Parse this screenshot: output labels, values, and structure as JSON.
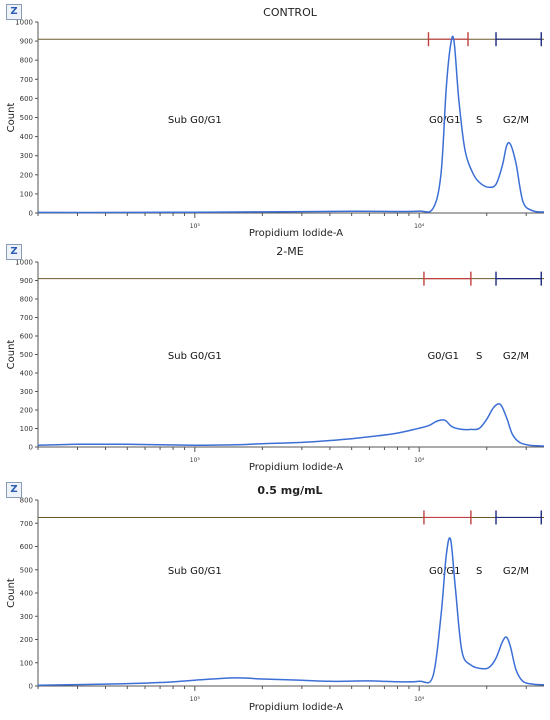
{
  "chart_data": [
    {
      "type": "line",
      "title": "CONTROL",
      "xlabel": "Propidium Iodide-A",
      "ylabel": "Count",
      "ylim": [
        0,
        1000
      ],
      "yticks": [
        0,
        100,
        200,
        300,
        400,
        500,
        600,
        700,
        800,
        900,
        1000
      ],
      "x_scale": "log",
      "xlim": [
        200,
        36000
      ],
      "xtick_labels": [
        {
          "value": 1000,
          "label": "10³"
        },
        {
          "value": 10000,
          "label": "10⁴"
        }
      ],
      "gate_line_y": 910,
      "gate_markers": [
        {
          "x": 11000,
          "color": "#c04040"
        },
        {
          "x": 16500,
          "color": "#c04040"
        },
        {
          "x": 22000,
          "color": "#1c2a80"
        },
        {
          "x": 35000,
          "color": "#1c2a80"
        }
      ],
      "region_labels": [
        {
          "text": "Sub G0/G1",
          "x": 1000
        },
        {
          "text": "G0/G1",
          "x": 13000
        },
        {
          "text": "S",
          "x": 18500
        },
        {
          "text": "G2/M",
          "x": 27000
        }
      ],
      "series": [
        {
          "x": [
            200,
            500,
            1000,
            2000,
            5000,
            8000,
            10000,
            11500,
            12500,
            13200,
            13800,
            14300,
            15000,
            16000,
            17500,
            19000,
            20500,
            22000,
            23500,
            24500,
            25500,
            27000,
            29000,
            32000,
            36000
          ],
          "y": [
            3,
            3,
            4,
            6,
            9,
            8,
            10,
            22,
            200,
            650,
            880,
            900,
            600,
            330,
            200,
            150,
            135,
            150,
            250,
            350,
            360,
            260,
            60,
            12,
            5
          ]
        }
      ]
    },
    {
      "type": "line",
      "title": "2-ME",
      "xlabel": "Propidium Iodide-A",
      "ylabel": "Count",
      "ylim": [
        0,
        1000
      ],
      "yticks": [
        0,
        100,
        200,
        300,
        400,
        500,
        600,
        700,
        800,
        900,
        1000
      ],
      "x_scale": "log",
      "xlim": [
        200,
        36000
      ],
      "xtick_labels": [
        {
          "value": 1000,
          "label": "10³"
        },
        {
          "value": 10000,
          "label": "10⁴"
        }
      ],
      "gate_line_y": 910,
      "gate_markers": [
        {
          "x": 10500,
          "color": "#c04040"
        },
        {
          "x": 17000,
          "color": "#c04040"
        },
        {
          "x": 22000,
          "color": "#1c2a80"
        },
        {
          "x": 35000,
          "color": "#1c2a80"
        }
      ],
      "region_labels": [
        {
          "text": "Sub G0/G1",
          "x": 1000
        },
        {
          "text": "G0/G1",
          "x": 12800
        },
        {
          "text": "S",
          "x": 18500
        },
        {
          "text": "G2/M",
          "x": 27000
        }
      ],
      "series": [
        {
          "x": [
            200,
            300,
            500,
            1000,
            1500,
            2000,
            3000,
            4000,
            5000,
            6500,
            8000,
            9500,
            11000,
            12000,
            13000,
            14000,
            15500,
            17000,
            18500,
            20000,
            21500,
            23000,
            24500,
            26000,
            28000,
            31000,
            36000
          ],
          "y": [
            10,
            15,
            15,
            10,
            12,
            18,
            25,
            35,
            45,
            60,
            75,
            95,
            115,
            140,
            145,
            110,
            95,
            95,
            100,
            150,
            215,
            230,
            160,
            70,
            25,
            10,
            5
          ]
        }
      ]
    },
    {
      "type": "line",
      "title": "0.5 mg/mL",
      "xlabel": "Propidium Iodide-A",
      "ylabel": "Count",
      "ylim": [
        0,
        800
      ],
      "yticks": [
        0,
        100,
        200,
        300,
        400,
        500,
        600,
        700,
        800
      ],
      "x_scale": "log",
      "xlim": [
        200,
        36000
      ],
      "xtick_labels": [
        {
          "value": 1000,
          "label": "10³"
        },
        {
          "value": 10000,
          "label": "10⁴"
        }
      ],
      "gate_line_y": 725,
      "gate_markers": [
        {
          "x": 10500,
          "color": "#c04040"
        },
        {
          "x": 17000,
          "color": "#c04040"
        },
        {
          "x": 22000,
          "color": "#1c2a80"
        },
        {
          "x": 35000,
          "color": "#1c2a80"
        }
      ],
      "region_labels": [
        {
          "text": "Sub G0/G1",
          "x": 1000
        },
        {
          "text": "G0/G1",
          "x": 13000
        },
        {
          "text": "S",
          "x": 18500
        },
        {
          "text": "G2/M",
          "x": 27000
        }
      ],
      "series": [
        {
          "x": [
            200,
            400,
            700,
            1000,
            1500,
            2000,
            3000,
            4000,
            6000,
            8000,
            10000,
            11500,
            12500,
            13200,
            13800,
            14500,
            15500,
            17000,
            19000,
            20500,
            22000,
            23500,
            24500,
            25500,
            27000,
            29000,
            32000,
            36000
          ],
          "y": [
            3,
            8,
            15,
            25,
            35,
            30,
            25,
            20,
            22,
            18,
            20,
            40,
            300,
            560,
            630,
            420,
            150,
            90,
            75,
            80,
            120,
            190,
            210,
            170,
            70,
            20,
            8,
            5
          ]
        }
      ]
    }
  ]
}
